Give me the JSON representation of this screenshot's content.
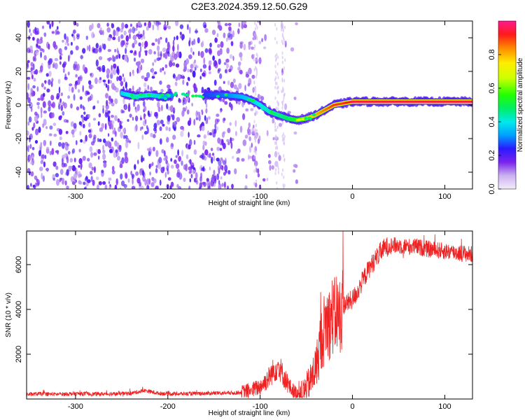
{
  "figure": {
    "title": "C2E3.2024.359.12.50.G29"
  },
  "chart_data": [
    {
      "type": "heatmap",
      "title": "C2E3.2024.359.12.50.G29",
      "xlabel": "Height of straight line (km)",
      "ylabel": "Frequency (Hz)",
      "xlim": [
        -353,
        130
      ],
      "ylim": [
        -50,
        50
      ],
      "x_ticks": [
        -300,
        -200,
        -100,
        0,
        100
      ],
      "y_ticks": [
        -40,
        -20,
        0,
        20,
        40
      ],
      "colorbar": {
        "label": "Normalized spectral amplitude",
        "range": [
          0,
          1
        ],
        "ticks": [
          0.0,
          0.2,
          0.4,
          0.6,
          0.8
        ]
      },
      "ridge": {
        "x": [
          -250,
          -235,
          -220,
          -205,
          -190,
          -160,
          -140,
          -120,
          -110,
          -100,
          -90,
          -80,
          -70,
          -60,
          -50,
          -40,
          -30,
          -20,
          -10,
          0,
          20,
          50,
          80,
          110,
          130
        ],
        "frequency": [
          7,
          5,
          6,
          5,
          6,
          6,
          6,
          5,
          3,
          0,
          -4,
          -6,
          -8,
          -9,
          -8,
          -6,
          -3,
          0,
          1,
          2,
          2,
          2,
          2,
          2,
          2
        ],
        "amplitude": [
          0.35,
          0.45,
          0.4,
          0.3,
          0.2,
          0.15,
          0.2,
          0.3,
          0.35,
          0.4,
          0.45,
          0.5,
          0.55,
          0.65,
          0.75,
          0.8,
          0.85,
          0.9,
          0.9,
          0.95,
          0.95,
          0.95,
          0.95,
          0.95,
          0.95
        ]
      },
      "grid": false
    },
    {
      "type": "line",
      "xlabel": "Height of straight line (km)",
      "ylabel": "SNR (10 * v/v)",
      "xlim": [
        -353,
        130
      ],
      "ylim": [
        0,
        7500
      ],
      "x_ticks": [
        -300,
        -200,
        -100,
        0,
        100
      ],
      "y_ticks": [
        2000,
        4000,
        6000
      ],
      "series": [
        {
          "color": "#ee2222",
          "x": [
            -353,
            -340,
            -320,
            -300,
            -280,
            -260,
            -240,
            -225,
            -210,
            -190,
            -170,
            -150,
            -130,
            -120,
            -110,
            -100,
            -95,
            -90,
            -85,
            -80,
            -75,
            -70,
            -65,
            -60,
            -55,
            -50,
            -45,
            -40,
            -37,
            -35,
            -32,
            -30,
            -27,
            -25,
            -22,
            -20,
            -17,
            -15,
            -12,
            -10,
            -5,
            0,
            5,
            10,
            15,
            20,
            25,
            30,
            35,
            40,
            50,
            60,
            70,
            80,
            90,
            100,
            110,
            120,
            130
          ],
          "y": [
            200,
            230,
            210,
            240,
            220,
            230,
            250,
            380,
            250,
            230,
            240,
            260,
            270,
            300,
            380,
            550,
            750,
            1000,
            1300,
            1500,
            1050,
            650,
            380,
            250,
            230,
            500,
            850,
            1400,
            1900,
            2500,
            2800,
            3300,
            3500,
            3400,
            3700,
            3600,
            3900,
            3700,
            3850,
            4200,
            4300,
            4450,
            4750,
            5200,
            5600,
            5950,
            6250,
            6550,
            6750,
            6850,
            6850,
            6800,
            6800,
            6700,
            6650,
            6600,
            6550,
            6500,
            6450
          ]
        }
      ],
      "grid": false
    }
  ]
}
